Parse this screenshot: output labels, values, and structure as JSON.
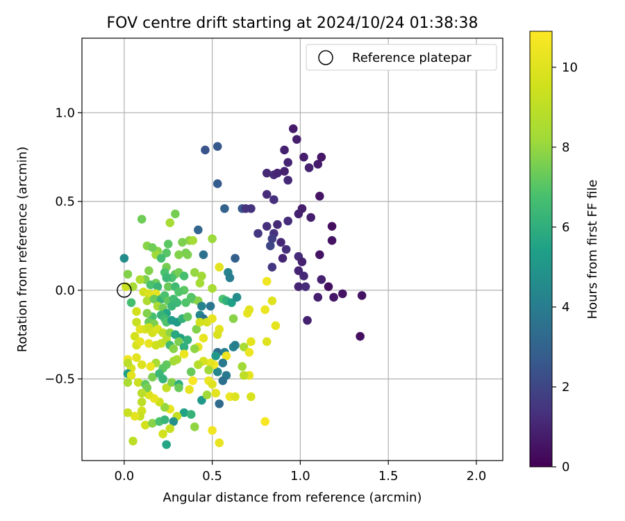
{
  "chart_data": {
    "type": "scatter",
    "title": "FOV centre drift starting at 2024/10/24 01:38:38",
    "xlabel": "Angular distance from reference (arcmin)",
    "ylabel": "Rotation from reference (arcmin)",
    "xlim": [
      -0.24,
      2.15
    ],
    "ylim": [
      -0.96,
      1.42
    ],
    "xticks": [
      0.0,
      0.5,
      1.0,
      1.5,
      2.0
    ],
    "xtick_labels": [
      "0.0",
      "0.5",
      "1.0",
      "1.5",
      "2.0"
    ],
    "yticks": [
      -0.5,
      0.0,
      0.5,
      1.0
    ],
    "ytick_labels": [
      "−0.5",
      "0.0",
      "0.5",
      "1.0"
    ],
    "grid": true,
    "legend": {
      "placement": "top-right",
      "entries": [
        "Reference platepar"
      ]
    },
    "reference_point": {
      "x": 0.0,
      "y": 0.0
    },
    "colorbar": {
      "label": "Hours from first FF file",
      "colormap": "viridis",
      "range": [
        0,
        10.9
      ],
      "ticks": [
        0,
        2,
        4,
        6,
        8,
        10
      ],
      "tick_labels": [
        "0",
        "2",
        "4",
        "6",
        "8",
        "10"
      ]
    },
    "points": [
      [
        0.96,
        0.91,
        0.7
      ],
      [
        0.98,
        0.85,
        0.8
      ],
      [
        0.91,
        0.79,
        0.9
      ],
      [
        1.12,
        0.75,
        0.6
      ],
      [
        1.02,
        0.75,
        0.8
      ],
      [
        1.1,
        0.71,
        0.7
      ],
      [
        0.93,
        0.72,
        1.0
      ],
      [
        1.05,
        0.69,
        0.9
      ],
      [
        0.81,
        0.66,
        1.1
      ],
      [
        0.85,
        0.65,
        1.2
      ],
      [
        0.87,
        0.66,
        1.0
      ],
      [
        0.91,
        0.67,
        0.9
      ],
      [
        0.93,
        0.62,
        1.1
      ],
      [
        1.11,
        0.53,
        0.5
      ],
      [
        0.81,
        0.54,
        1.2
      ],
      [
        0.85,
        0.51,
        1.3
      ],
      [
        1.01,
        0.46,
        0.8
      ],
      [
        0.99,
        0.43,
        0.9
      ],
      [
        1.06,
        0.41,
        0.8
      ],
      [
        0.72,
        0.46,
        1.4
      ],
      [
        0.81,
        0.36,
        1.3
      ],
      [
        0.87,
        0.37,
        1.1
      ],
      [
        0.93,
        0.39,
        1.2
      ],
      [
        0.76,
        0.32,
        1.5
      ],
      [
        1.18,
        0.36,
        0.4
      ],
      [
        1.18,
        0.28,
        0.5
      ],
      [
        0.85,
        0.32,
        1.4
      ],
      [
        0.84,
        0.29,
        1.8
      ],
      [
        0.83,
        0.25,
        2.0
      ],
      [
        0.89,
        0.27,
        1.1
      ],
      [
        0.92,
        0.23,
        1.3
      ],
      [
        0.99,
        0.19,
        1.2
      ],
      [
        1.11,
        0.2,
        0.5
      ],
      [
        0.9,
        0.18,
        1.0
      ],
      [
        0.84,
        0.13,
        1.5
      ],
      [
        1.01,
        0.16,
        0.9
      ],
      [
        0.99,
        0.11,
        1.0
      ],
      [
        1.02,
        0.08,
        1.1
      ],
      [
        0.99,
        0.02,
        1.0
      ],
      [
        1.03,
        0.02,
        1.2
      ],
      [
        1.12,
        0.06,
        0.9
      ],
      [
        1.16,
        0.02,
        0.4
      ],
      [
        1.24,
        -0.02,
        0.5
      ],
      [
        1.19,
        -0.04,
        0.6
      ],
      [
        1.1,
        -0.04,
        0.8
      ],
      [
        1.35,
        -0.03,
        0.5
      ],
      [
        1.04,
        -0.17,
        0.9
      ],
      [
        1.34,
        -0.26,
        0.4
      ],
      [
        0.46,
        0.79,
        2.5
      ],
      [
        0.53,
        0.81,
        2.6
      ],
      [
        0.53,
        0.6,
        2.7
      ],
      [
        0.67,
        0.46,
        2.6
      ],
      [
        0.57,
        0.46,
        3.0
      ],
      [
        0.42,
        0.34,
        3.1
      ],
      [
        0.63,
        0.18,
        2.9
      ],
      [
        0.69,
        0.46,
        1.4
      ],
      [
        0.59,
        0.1,
        4.2
      ],
      [
        0.6,
        0.07,
        4.0
      ],
      [
        0.0,
        0.18,
        4.6
      ],
      [
        0.13,
        0.25,
        7.8
      ],
      [
        0.1,
        0.4,
        7.4
      ],
      [
        0.26,
        0.38,
        8.4
      ],
      [
        0.29,
        0.43,
        7.5
      ],
      [
        0.5,
        0.29,
        8.1
      ],
      [
        0.37,
        0.28,
        7.9
      ],
      [
        0.39,
        0.28,
        8.3
      ],
      [
        0.33,
        0.27,
        7.6
      ],
      [
        0.25,
        0.26,
        7.1
      ],
      [
        0.24,
        0.21,
        7.0
      ],
      [
        0.19,
        0.22,
        7.8
      ],
      [
        0.18,
        0.2,
        8.2
      ],
      [
        0.16,
        0.24,
        7.4
      ],
      [
        0.35,
        0.21,
        7.5
      ],
      [
        0.36,
        0.2,
        7.6
      ],
      [
        0.45,
        0.2,
        3.6
      ],
      [
        0.31,
        0.2,
        7.7
      ],
      [
        0.21,
        0.18,
        6.6
      ],
      [
        0.14,
        0.11,
        7.7
      ],
      [
        0.24,
        0.13,
        7.5
      ],
      [
        0.23,
        0.1,
        6.8
      ],
      [
        0.29,
        0.09,
        7.2
      ],
      [
        0.31,
        0.1,
        7.5
      ],
      [
        0.34,
        0.08,
        6.7
      ],
      [
        0.4,
        0.1,
        8.0
      ],
      [
        0.44,
        0.08,
        8.2
      ],
      [
        0.27,
        0.07,
        6.8
      ],
      [
        0.24,
        0.07,
        6.4
      ],
      [
        0.18,
        0.04,
        7.4
      ],
      [
        0.12,
        0.06,
        7.6
      ],
      [
        0.09,
        0.06,
        8.6
      ],
      [
        0.02,
        0.09,
        7.7
      ],
      [
        0.01,
        0.02,
        9.4
      ],
      [
        0.05,
        0.02,
        8.4
      ],
      [
        0.15,
        0.03,
        6.8
      ],
      [
        0.19,
        0.02,
        6.3
      ],
      [
        0.25,
        0.02,
        7.3
      ],
      [
        0.29,
        0.02,
        6.5
      ],
      [
        0.34,
        0.0,
        7.1
      ],
      [
        0.31,
        -0.01,
        6.9
      ],
      [
        0.43,
        0.04,
        8.3
      ],
      [
        0.54,
        0.13,
        10.1
      ],
      [
        0.5,
        0.01,
        8.4
      ],
      [
        0.56,
        -0.05,
        6.8
      ],
      [
        0.11,
        -0.01,
        9.5
      ],
      [
        0.14,
        -0.02,
        9.9
      ],
      [
        0.18,
        -0.02,
        10.2
      ],
      [
        0.04,
        -0.07,
        6.7
      ],
      [
        0.13,
        -0.06,
        8.6
      ],
      [
        0.17,
        -0.05,
        7.3
      ],
      [
        0.21,
        -0.05,
        6.2
      ],
      [
        0.23,
        -0.03,
        6.8
      ],
      [
        0.25,
        -0.06,
        7.2
      ],
      [
        0.28,
        -0.05,
        6.6
      ],
      [
        0.3,
        -0.07,
        6.4
      ],
      [
        0.35,
        -0.07,
        6.9
      ],
      [
        0.39,
        -0.05,
        7.2
      ],
      [
        0.42,
        -0.06,
        7.8
      ],
      [
        0.38,
        -0.04,
        7.0
      ],
      [
        0.44,
        -0.09,
        4.2
      ],
      [
        0.49,
        -0.09,
        3.7
      ],
      [
        0.58,
        -0.06,
        6.1
      ],
      [
        0.61,
        -0.07,
        5.4
      ],
      [
        0.64,
        -0.04,
        4.6
      ],
      [
        0.7,
        -0.13,
        10.2
      ],
      [
        0.71,
        -0.11,
        10.1
      ],
      [
        0.81,
        0.05,
        10.5
      ],
      [
        0.84,
        -0.06,
        10.0
      ],
      [
        0.8,
        -0.11,
        10.4
      ],
      [
        0.19,
        -0.09,
        8.4
      ],
      [
        0.22,
        -0.1,
        7.5
      ],
      [
        0.27,
        -0.09,
        6.3
      ],
      [
        0.24,
        -0.13,
        5.6
      ],
      [
        0.21,
        -0.14,
        6.2
      ],
      [
        0.16,
        -0.15,
        6.7
      ],
      [
        0.13,
        -0.13,
        7.7
      ],
      [
        0.07,
        -0.12,
        9.6
      ],
      [
        0.14,
        -0.18,
        7.3
      ],
      [
        0.17,
        -0.19,
        7.6
      ],
      [
        0.23,
        -0.16,
        6.5
      ],
      [
        0.24,
        -0.18,
        6.9
      ],
      [
        0.27,
        -0.17,
        5.3
      ],
      [
        0.3,
        -0.18,
        5.2
      ],
      [
        0.33,
        -0.16,
        6.1
      ],
      [
        0.36,
        -0.15,
        7.2
      ],
      [
        0.43,
        -0.14,
        4.4
      ],
      [
        0.45,
        -0.16,
        3.6
      ],
      [
        0.47,
        -0.18,
        9.7
      ],
      [
        0.5,
        -0.16,
        10.2
      ],
      [
        0.54,
        -0.22,
        10.1
      ],
      [
        0.53,
        -0.25,
        9.8
      ],
      [
        0.62,
        -0.16,
        7.8
      ],
      [
        0.68,
        -0.32,
        8.4
      ],
      [
        0.72,
        -0.29,
        10.1
      ],
      [
        0.86,
        -0.2,
        10.2
      ],
      [
        0.81,
        -0.29,
        10.0
      ],
      [
        0.07,
        -0.18,
        9.3
      ],
      [
        0.09,
        -0.22,
        10.1
      ],
      [
        0.12,
        -0.22,
        9.8
      ],
      [
        0.14,
        -0.21,
        9.4
      ],
      [
        0.16,
        -0.24,
        9.6
      ],
      [
        0.19,
        -0.22,
        9.9
      ],
      [
        0.22,
        -0.24,
        9.1
      ],
      [
        0.26,
        -0.24,
        7.9
      ],
      [
        0.29,
        -0.25,
        5.8
      ],
      [
        0.32,
        -0.27,
        5.5
      ],
      [
        0.31,
        -0.29,
        7.6
      ],
      [
        0.36,
        -0.28,
        6.1
      ],
      [
        0.41,
        -0.22,
        7.7
      ],
      [
        0.43,
        -0.18,
        9.6
      ],
      [
        0.45,
        -0.27,
        10.3
      ],
      [
        0.42,
        -0.32,
        10.2
      ],
      [
        0.06,
        -0.26,
        9.6
      ],
      [
        0.07,
        -0.31,
        9.7
      ],
      [
        0.09,
        -0.29,
        10.2
      ],
      [
        0.14,
        -0.3,
        10.3
      ],
      [
        0.18,
        -0.31,
        9.5
      ],
      [
        0.21,
        -0.3,
        9.3
      ],
      [
        0.24,
        -0.28,
        8.9
      ],
      [
        0.26,
        -0.31,
        6.5
      ],
      [
        0.28,
        -0.33,
        7.8
      ],
      [
        0.34,
        -0.32,
        6.0
      ],
      [
        0.4,
        -0.33,
        7.9
      ],
      [
        0.53,
        -0.35,
        3.4
      ],
      [
        0.52,
        -0.37,
        5.1
      ],
      [
        0.57,
        -0.35,
        4.1
      ],
      [
        0.62,
        -0.32,
        4.2
      ],
      [
        0.63,
        -0.31,
        4.1
      ],
      [
        0.71,
        -0.35,
        10.4
      ],
      [
        0.71,
        -0.48,
        10.2
      ],
      [
        0.68,
        -0.48,
        9.0
      ],
      [
        0.67,
        -0.43,
        8.2
      ],
      [
        0.58,
        -0.37,
        10.5
      ],
      [
        0.56,
        -0.41,
        3.8
      ],
      [
        0.58,
        -0.48,
        3.9
      ],
      [
        0.56,
        -0.51,
        3.5
      ],
      [
        0.53,
        -0.46,
        4.4
      ],
      [
        0.51,
        -0.42,
        10.6
      ],
      [
        0.49,
        -0.41,
        10.2
      ],
      [
        0.48,
        -0.45,
        8.2
      ],
      [
        0.45,
        -0.4,
        9.7
      ],
      [
        0.42,
        -0.42,
        8.8
      ],
      [
        0.38,
        -0.46,
        7.3
      ],
      [
        0.34,
        -0.36,
        10.4
      ],
      [
        0.3,
        -0.39,
        8.6
      ],
      [
        0.28,
        -0.4,
        8.3
      ],
      [
        0.24,
        -0.42,
        7.2
      ],
      [
        0.22,
        -0.44,
        7.1
      ],
      [
        0.18,
        -0.41,
        8.4
      ],
      [
        0.15,
        -0.43,
        10.4
      ],
      [
        0.1,
        -0.42,
        9.9
      ],
      [
        0.07,
        -0.38,
        10.1
      ],
      [
        0.02,
        -0.39,
        10.5
      ],
      [
        0.04,
        -0.44,
        9.8
      ],
      [
        0.02,
        -0.41,
        8.9
      ],
      [
        0.02,
        -0.47,
        5.4
      ],
      [
        0.04,
        -0.48,
        10.1
      ],
      [
        0.02,
        -0.52,
        8.5
      ],
      [
        0.08,
        -0.52,
        9.4
      ],
      [
        0.12,
        -0.53,
        7.2
      ],
      [
        0.16,
        -0.49,
        7.6
      ],
      [
        0.2,
        -0.47,
        6.4
      ],
      [
        0.22,
        -0.5,
        6.2
      ],
      [
        0.24,
        -0.55,
        9.2
      ],
      [
        0.27,
        -0.52,
        7.7
      ],
      [
        0.31,
        -0.53,
        6.0
      ],
      [
        0.31,
        -0.55,
        7.3
      ],
      [
        0.39,
        -0.51,
        10.7
      ],
      [
        0.48,
        -0.51,
        10.4
      ],
      [
        0.5,
        -0.53,
        10.0
      ],
      [
        0.54,
        -0.64,
        3.3
      ],
      [
        0.52,
        -0.58,
        10.1
      ],
      [
        0.6,
        -0.6,
        10.4
      ],
      [
        0.63,
        -0.6,
        9.9
      ],
      [
        0.72,
        -0.6,
        9.8
      ],
      [
        0.8,
        -0.74,
        10.7
      ],
      [
        0.44,
        -0.62,
        5.1
      ],
      [
        0.47,
        -0.59,
        8.2
      ],
      [
        0.37,
        -0.56,
        10.2
      ],
      [
        0.34,
        -0.69,
        5.5
      ],
      [
        0.38,
        -0.7,
        6.2
      ],
      [
        0.3,
        -0.71,
        9.2
      ],
      [
        0.28,
        -0.74,
        4.8
      ],
      [
        0.26,
        -0.67,
        10.2
      ],
      [
        0.23,
        -0.66,
        8.0
      ],
      [
        0.2,
        -0.63,
        9.5
      ],
      [
        0.17,
        -0.61,
        10.3
      ],
      [
        0.14,
        -0.59,
        9.9
      ],
      [
        0.13,
        -0.55,
        7.5
      ],
      [
        0.1,
        -0.58,
        8.9
      ],
      [
        0.1,
        -0.63,
        9.0
      ],
      [
        0.1,
        -0.68,
        9.6
      ],
      [
        0.09,
        -0.71,
        9.3
      ],
      [
        0.06,
        -0.71,
        10.1
      ],
      [
        0.02,
        -0.69,
        9.3
      ],
      [
        0.12,
        -0.76,
        9.6
      ],
      [
        0.16,
        -0.75,
        7.8
      ],
      [
        0.2,
        -0.74,
        6.8
      ],
      [
        0.23,
        -0.73,
        6.3
      ],
      [
        0.26,
        -0.78,
        9.3
      ],
      [
        0.4,
        -0.77,
        7.9
      ],
      [
        0.5,
        -0.79,
        10.5
      ],
      [
        0.22,
        -0.81,
        9.6
      ],
      [
        0.24,
        -0.87,
        5.6
      ],
      [
        0.05,
        -0.85,
        9.0
      ],
      [
        0.54,
        -0.86,
        10.3
      ]
    ]
  }
}
